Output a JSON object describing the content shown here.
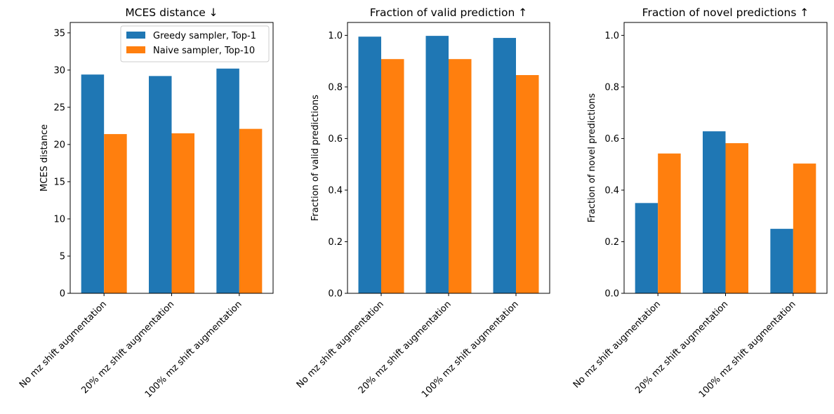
{
  "colors": {
    "greedy": "#1f77b4",
    "naive": "#ff7f0e"
  },
  "chart_data": [
    {
      "type": "bar",
      "title": "MCES distance ↓",
      "ylabel": "MCES distance",
      "xlabel": "",
      "categories": [
        "No mz shift augmentation",
        "20% mz shift augmentation",
        "100% mz shift augmentation"
      ],
      "series": [
        {
          "name": "Greedy sampler, Top-1",
          "values": [
            29.4,
            29.2,
            30.2
          ]
        },
        {
          "name": "Naive sampler, Top-10",
          "values": [
            21.4,
            21.5,
            22.1
          ]
        }
      ],
      "ylim": [
        0,
        36.4
      ],
      "yticks": [
        0,
        5,
        10,
        15,
        20,
        25,
        30,
        35
      ],
      "ytick_labels": [
        "0",
        "5",
        "10",
        "15",
        "20",
        "25",
        "30",
        "35"
      ],
      "legend": "top-right",
      "grid": false
    },
    {
      "type": "bar",
      "title": "Fraction of valid prediction ↑",
      "ylabel": "Fraction of valid predictions",
      "xlabel": "",
      "categories": [
        "No mz shift augmentation",
        "20% mz shift augmentation",
        "100% mz shift augmentation"
      ],
      "series": [
        {
          "name": "Greedy sampler, Top-1",
          "values": [
            0.995,
            0.998,
            0.99
          ]
        },
        {
          "name": "Naive sampler, Top-10",
          "values": [
            0.908,
            0.908,
            0.846
          ]
        }
      ],
      "ylim": [
        0,
        1.05
      ],
      "yticks": [
        0,
        0.2,
        0.4,
        0.6,
        0.8,
        1.0
      ],
      "ytick_labels": [
        "0.0",
        "0.2",
        "0.4",
        "0.6",
        "0.8",
        "1.0"
      ],
      "legend": "none",
      "grid": false
    },
    {
      "type": "bar",
      "title": "Fraction of novel predictions ↑",
      "ylabel": "Fraction of novel predictions",
      "xlabel": "",
      "categories": [
        "No mz shift augmentation",
        "20% mz shift augmentation",
        "100% mz shift augmentation"
      ],
      "series": [
        {
          "name": "Greedy sampler, Top-1",
          "values": [
            0.35,
            0.628,
            0.25
          ]
        },
        {
          "name": "Naive sampler, Top-10",
          "values": [
            0.542,
            0.582,
            0.503
          ]
        }
      ],
      "ylim": [
        0,
        1.05
      ],
      "yticks": [
        0,
        0.2,
        0.4,
        0.6,
        0.8,
        1.0
      ],
      "ytick_labels": [
        "0.0",
        "0.2",
        "0.4",
        "0.6",
        "0.8",
        "1.0"
      ],
      "legend": "none",
      "grid": false
    }
  ]
}
